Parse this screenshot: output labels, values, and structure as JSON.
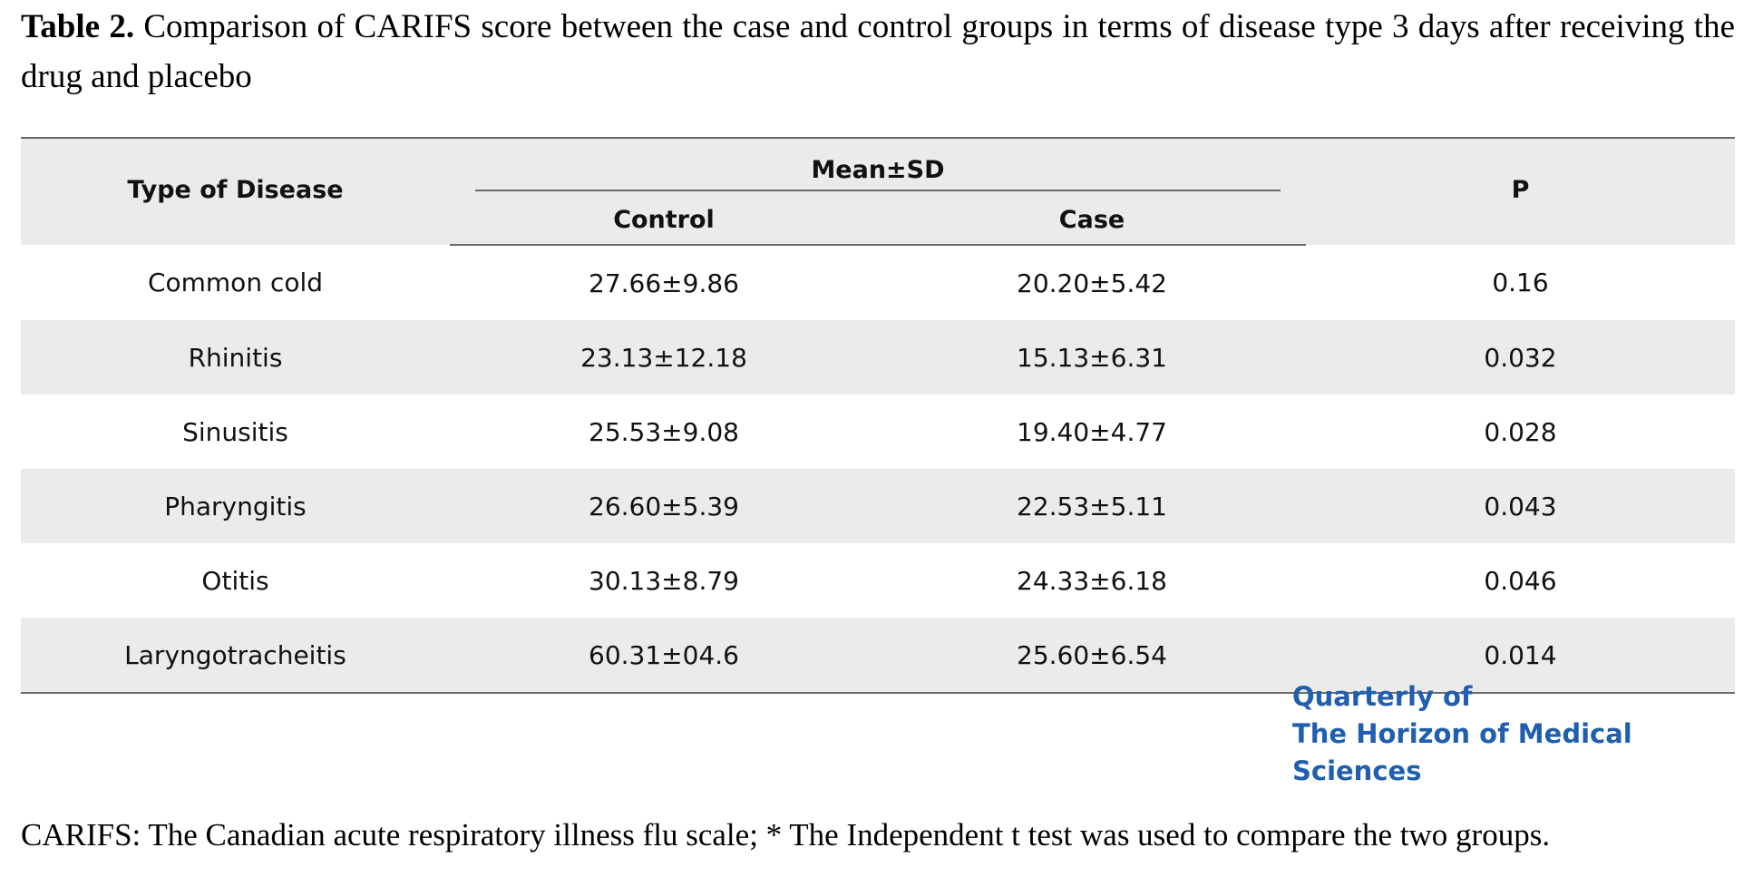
{
  "caption": {
    "lead": "Table 2.",
    "text": "Comparison of CARIFS score between the case and control groups in terms of disease type 3 days after receiving the drug and placebo"
  },
  "table": {
    "header": {
      "type_of_disease": "Type of Disease",
      "mean_sd": "Mean±SD",
      "control": "Control",
      "case": "Case",
      "p": "P"
    },
    "rows": [
      {
        "disease": "Common cold",
        "control": "27.66±9.86",
        "case": "20.20±5.42",
        "p": "0.16"
      },
      {
        "disease": "Rhinitis",
        "control": "23.13±12.18",
        "case": "15.13±6.31",
        "p": "0.032"
      },
      {
        "disease": "Sinusitis",
        "control": "25.53±9.08",
        "case": "19.40±4.77",
        "p": "0.028"
      },
      {
        "disease": "Pharyngitis",
        "control": "26.60±5.39",
        "case": "22.53±5.11",
        "p": "0.043"
      },
      {
        "disease": "Otitis",
        "control": "30.13±8.79",
        "case": "24.33±6.18",
        "p": "0.046"
      },
      {
        "disease": "Laryngotracheitis",
        "control": "60.31±04.6",
        "case": "25.60±6.54",
        "p": "0.014"
      }
    ]
  },
  "watermark": {
    "line1": "Quarterly of",
    "line2": "The Horizon of Medical Sciences",
    "color": "#1f5fae",
    "accent_color": "#6aa2dc"
  },
  "footnote": "CARIFS: The Canadian acute respiratory illness flu scale; * The Independent t test was used to compare the two groups."
}
